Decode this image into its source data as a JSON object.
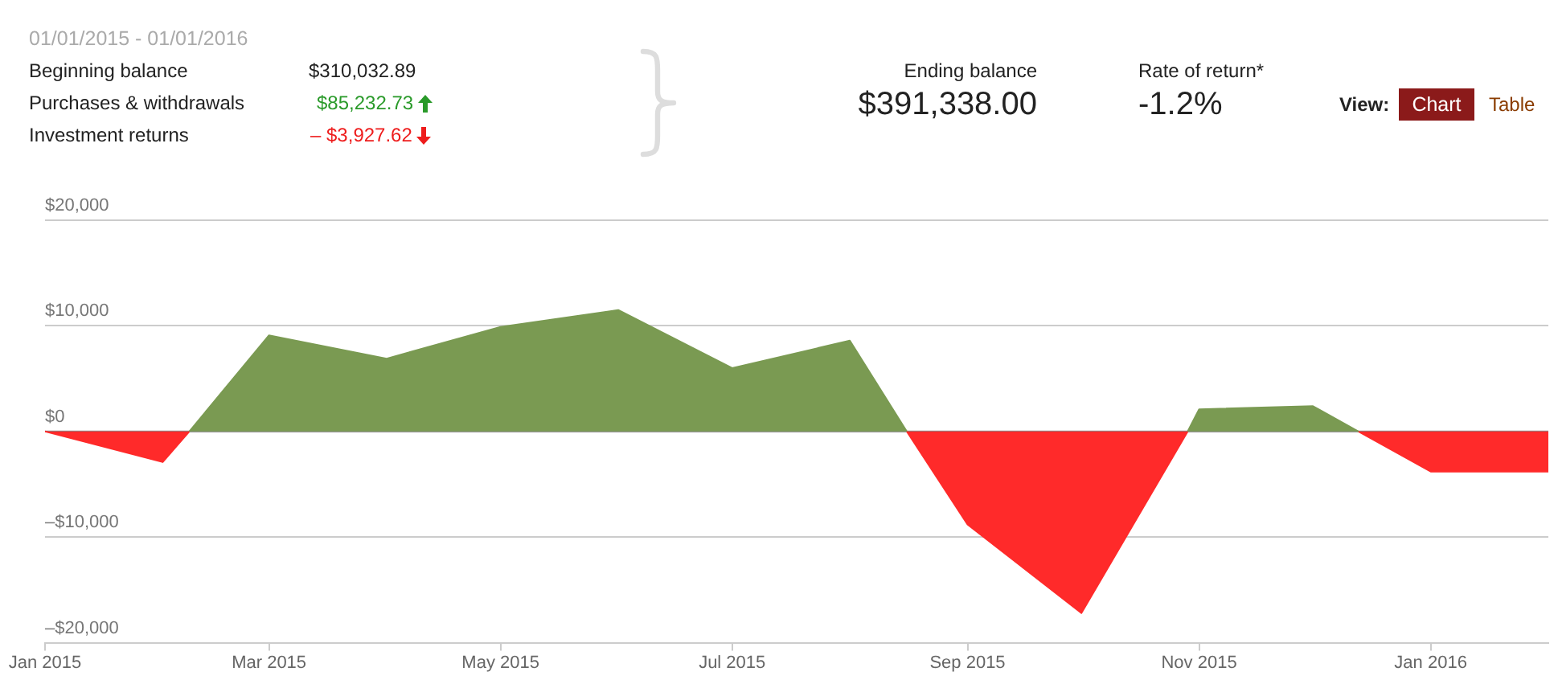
{
  "chart_data": {
    "type": "area",
    "title": "01/01/2015 - 01/01/2016",
    "series": [
      {
        "color": "#7a9a52",
        "x": [
          "2015-02-08",
          "2015-03",
          "2015-04",
          "2015-05",
          "2015-06",
          "2015-07",
          "2015-08",
          "2015-08-16",
          "2015-09",
          "2015-10-29",
          "2015-11",
          "2015-12",
          "2015-12-13"
        ],
        "values": [
          0,
          9100,
          6900,
          9900,
          11500,
          6000,
          8600,
          0,
          null,
          0,
          2100,
          2400,
          0
        ]
      },
      {
        "color": "#ff2a2a",
        "x": [
          "2015-01",
          "2015-02",
          "2015-02-08",
          "2015-05",
          "2015-08-16",
          "2015-09",
          "2015-10",
          "2015-10-29",
          "2015-11",
          "2015-12-13",
          "2016-01",
          "2016-02"
        ],
        "values": [
          0,
          -2900,
          0,
          null,
          0,
          -8800,
          -17200,
          0,
          null,
          0,
          -3800,
          -3800
        ]
      }
    ],
    "xlim": [
      "2015-01",
      "2016-02"
    ],
    "xticks": [
      {
        "value": "2015-01",
        "label": "Jan 2015"
      },
      {
        "value": "2015-03",
        "label": "Mar 2015"
      },
      {
        "value": "2015-05",
        "label": "May 2015"
      },
      {
        "value": "2015-07",
        "label": "Jul 2015"
      },
      {
        "value": "2015-09",
        "label": "Sep 2015"
      },
      {
        "value": "2015-11",
        "label": "Nov 2015"
      },
      {
        "value": "2016-01",
        "label": "Jan 2016"
      }
    ],
    "ylim": [
      -20000,
      20000
    ],
    "yticks": [
      {
        "value": -20000,
        "label": "–$20,000"
      },
      {
        "value": -10000,
        "label": "–$10,000"
      },
      {
        "value": 0,
        "label": "$0"
      },
      {
        "value": 10000,
        "label": "$10,000"
      },
      {
        "value": 20000,
        "label": "$20,000"
      }
    ],
    "grid": "y",
    "marker": "none",
    "ref_lines": [
      {
        "axis": "y",
        "value": 0,
        "color": "#888888"
      }
    ],
    "annotations": [
      "Beginning balance",
      "$310,032.89",
      "Purchases & withdrawals",
      "$85,232.73",
      "Investment returns",
      "– $3,927.62",
      "Ending balance",
      "$391,338.00",
      "Rate of return*",
      "-1.2%",
      "View:",
      "Chart",
      "Table"
    ]
  }
}
